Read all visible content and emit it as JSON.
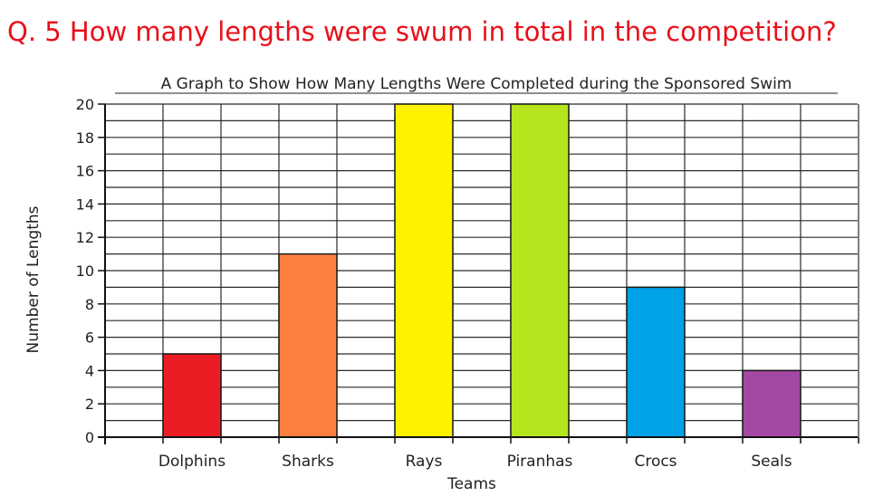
{
  "question": "Q. 5 How many lengths were swum in total in the competition?",
  "colors": {
    "question": "#e8101a",
    "grid": "#2a2a2a"
  },
  "chart_data": {
    "type": "bar",
    "title": "A Graph to Show How Many Lengths Were Completed during the Sponsored Swim",
    "xlabel": "Teams",
    "ylabel": "Number of Lengths",
    "categories": [
      "Dolphins",
      "Sharks",
      "Rays",
      "Piranhas",
      "Crocs",
      "Seals"
    ],
    "values": [
      5,
      11,
      20,
      20,
      9,
      4
    ],
    "bar_colors": [
      "#ec1c24",
      "#ff7f3f",
      "#fff200",
      "#b5e61d",
      "#00a2e8",
      "#a349a4"
    ],
    "ylim": [
      0,
      20
    ],
    "yticks": [
      0,
      2,
      4,
      6,
      8,
      10,
      12,
      14,
      16,
      18,
      20
    ],
    "grid": true
  }
}
